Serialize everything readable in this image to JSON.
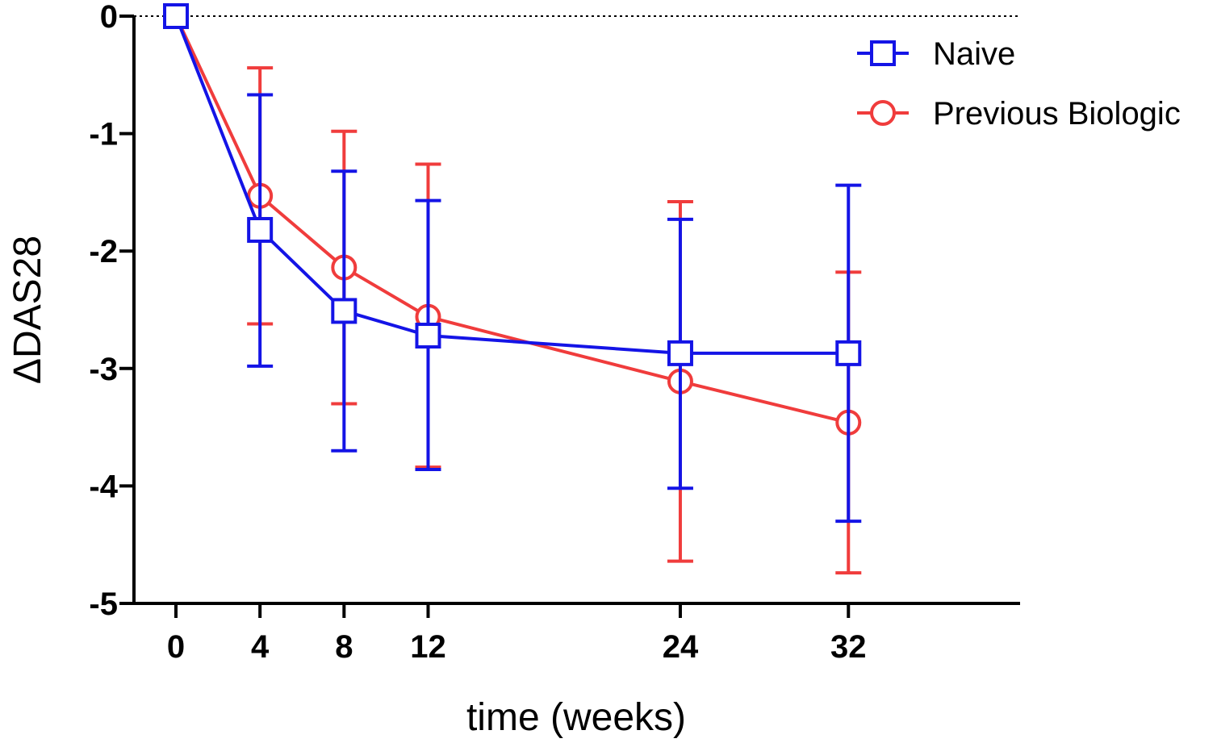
{
  "chart_data": {
    "type": "line",
    "title": "",
    "xlabel": "time (weeks)",
    "ylabel": "ΔDAS28",
    "x": [
      0,
      4,
      8,
      12,
      24,
      32
    ],
    "xticks": [
      "0",
      "4",
      "8",
      "12",
      "24",
      "32"
    ],
    "yticks": [
      "0",
      "-1",
      "-2",
      "-3",
      "-4",
      "-5"
    ],
    "xlim": [
      -2,
      40
    ],
    "ylim": [
      -5,
      0
    ],
    "grid": false,
    "reference_line": {
      "y": 0,
      "style": "dotted"
    },
    "legend_position": "top-right",
    "series": [
      {
        "name": "Naive",
        "color": "#1414e6",
        "marker": "square",
        "values": [
          0,
          -1.82,
          -2.51,
          -2.72,
          -2.87,
          -2.87
        ],
        "err_low": [
          0,
          -2.98,
          -3.7,
          -3.86,
          -4.02,
          -4.3
        ],
        "err_high": [
          0,
          -0.67,
          -1.32,
          -1.57,
          -1.73,
          -1.44
        ]
      },
      {
        "name": "Previous Biologic",
        "color": "#f03c3c",
        "marker": "circle",
        "values": [
          0,
          -1.53,
          -2.14,
          -2.56,
          -3.11,
          -3.46
        ],
        "err_low": [
          0,
          -2.62,
          -3.3,
          -3.84,
          -4.64,
          -4.74
        ],
        "err_high": [
          0,
          -0.44,
          -0.98,
          -1.26,
          -1.58,
          -2.18
        ]
      }
    ]
  }
}
